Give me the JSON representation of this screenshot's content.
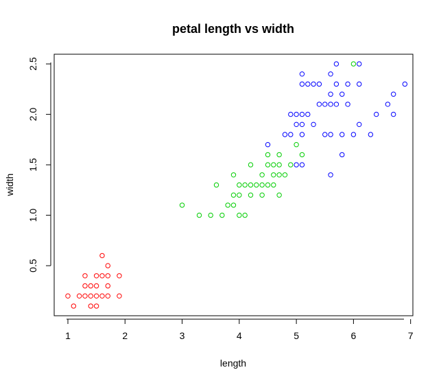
{
  "chart_data": {
    "type": "scatter",
    "title": "petal length vs width",
    "xlabel": "length",
    "ylabel": "width",
    "xlim": [
      0.76,
      7.04
    ],
    "ylim": [
      0.004,
      2.596
    ],
    "x_ticks": [
      "1",
      "2",
      "3",
      "4",
      "5",
      "6",
      "7"
    ],
    "y_ticks": [
      "0.5",
      "1.0",
      "1.5",
      "2.0",
      "2.5"
    ],
    "grid": false,
    "legend": "none",
    "series": [
      {
        "color": "#ff0000",
        "points": [
          [
            1.0,
            0.2
          ],
          [
            1.1,
            0.1
          ],
          [
            1.2,
            0.2
          ],
          [
            1.3,
            0.2
          ],
          [
            1.3,
            0.3
          ],
          [
            1.3,
            0.4
          ],
          [
            1.4,
            0.1
          ],
          [
            1.4,
            0.2
          ],
          [
            1.4,
            0.3
          ],
          [
            1.5,
            0.1
          ],
          [
            1.5,
            0.2
          ],
          [
            1.5,
            0.3
          ],
          [
            1.5,
            0.4
          ],
          [
            1.6,
            0.2
          ],
          [
            1.6,
            0.4
          ],
          [
            1.6,
            0.6
          ],
          [
            1.7,
            0.2
          ],
          [
            1.7,
            0.3
          ],
          [
            1.7,
            0.4
          ],
          [
            1.7,
            0.5
          ],
          [
            1.9,
            0.2
          ],
          [
            1.9,
            0.4
          ]
        ]
      },
      {
        "color": "#00cd00",
        "points": [
          [
            3.0,
            1.1
          ],
          [
            3.3,
            1.0
          ],
          [
            3.5,
            1.0
          ],
          [
            3.6,
            1.3
          ],
          [
            3.7,
            1.0
          ],
          [
            3.8,
            1.1
          ],
          [
            3.9,
            1.1
          ],
          [
            3.9,
            1.2
          ],
          [
            3.9,
            1.4
          ],
          [
            4.0,
            1.0
          ],
          [
            4.0,
            1.2
          ],
          [
            4.0,
            1.3
          ],
          [
            4.1,
            1.0
          ],
          [
            4.1,
            1.3
          ],
          [
            4.2,
            1.2
          ],
          [
            4.2,
            1.3
          ],
          [
            4.2,
            1.5
          ],
          [
            4.3,
            1.3
          ],
          [
            4.4,
            1.2
          ],
          [
            4.4,
            1.3
          ],
          [
            4.4,
            1.4
          ],
          [
            4.5,
            1.3
          ],
          [
            4.5,
            1.5
          ],
          [
            4.5,
            1.6
          ],
          [
            4.6,
            1.3
          ],
          [
            4.6,
            1.4
          ],
          [
            4.6,
            1.5
          ],
          [
            4.7,
            1.2
          ],
          [
            4.7,
            1.4
          ],
          [
            4.7,
            1.5
          ],
          [
            4.7,
            1.6
          ],
          [
            4.8,
            1.4
          ],
          [
            4.9,
            1.5
          ],
          [
            5.0,
            1.7
          ],
          [
            5.1,
            1.6
          ],
          [
            6.0,
            2.5
          ]
        ]
      },
      {
        "color": "#0000ff",
        "points": [
          [
            4.5,
            1.7
          ],
          [
            4.8,
            1.8
          ],
          [
            4.9,
            1.8
          ],
          [
            4.9,
            2.0
          ],
          [
            5.0,
            1.5
          ],
          [
            5.0,
            1.9
          ],
          [
            5.0,
            2.0
          ],
          [
            5.1,
            1.5
          ],
          [
            5.1,
            1.8
          ],
          [
            5.1,
            1.9
          ],
          [
            5.1,
            2.0
          ],
          [
            5.1,
            2.3
          ],
          [
            5.1,
            2.4
          ],
          [
            5.2,
            2.0
          ],
          [
            5.2,
            2.3
          ],
          [
            5.3,
            1.9
          ],
          [
            5.3,
            2.3
          ],
          [
            5.4,
            2.1
          ],
          [
            5.4,
            2.3
          ],
          [
            5.5,
            1.8
          ],
          [
            5.5,
            2.1
          ],
          [
            5.6,
            1.4
          ],
          [
            5.6,
            1.8
          ],
          [
            5.6,
            2.1
          ],
          [
            5.6,
            2.2
          ],
          [
            5.6,
            2.4
          ],
          [
            5.7,
            2.1
          ],
          [
            5.7,
            2.3
          ],
          [
            5.7,
            2.5
          ],
          [
            5.8,
            1.6
          ],
          [
            5.8,
            1.8
          ],
          [
            5.8,
            2.2
          ],
          [
            5.9,
            2.1
          ],
          [
            5.9,
            2.3
          ],
          [
            6.0,
            1.8
          ],
          [
            6.1,
            1.9
          ],
          [
            6.1,
            2.3
          ],
          [
            6.1,
            2.5
          ],
          [
            6.3,
            1.8
          ],
          [
            6.4,
            2.0
          ],
          [
            6.6,
            2.1
          ],
          [
            6.7,
            2.0
          ],
          [
            6.7,
            2.2
          ],
          [
            6.9,
            2.3
          ]
        ]
      }
    ]
  }
}
